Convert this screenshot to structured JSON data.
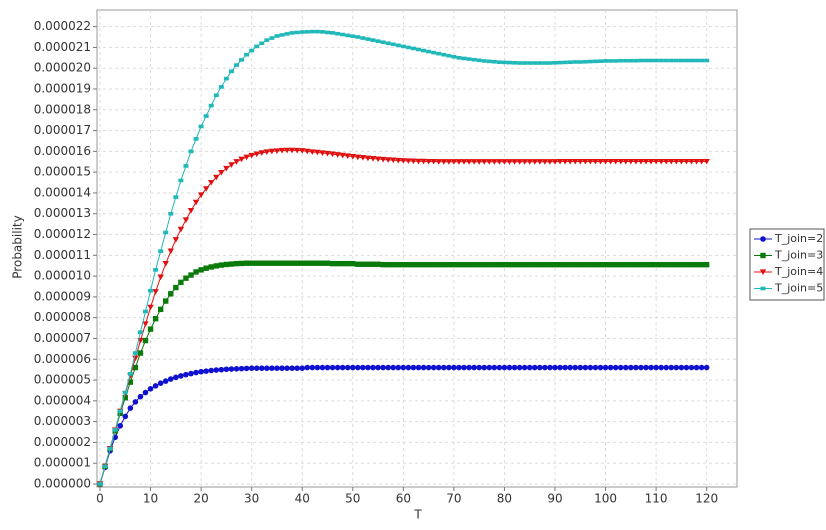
{
  "chart_data": {
    "type": "line",
    "xlabel": "T",
    "ylabel": "Probability",
    "x": [
      0,
      1,
      2,
      3,
      4,
      5,
      6,
      7,
      8,
      9,
      10,
      11,
      12,
      13,
      14,
      15,
      16,
      17,
      18,
      19,
      20,
      21,
      22,
      23,
      24,
      25,
      26,
      27,
      28,
      29,
      30,
      31,
      32,
      33,
      34,
      35,
      36,
      37,
      38,
      39,
      40,
      41,
      42,
      43,
      44,
      45,
      46,
      47,
      48,
      49,
      50,
      51,
      52,
      53,
      54,
      55,
      56,
      57,
      58,
      59,
      60,
      61,
      62,
      63,
      64,
      65,
      66,
      67,
      68,
      69,
      70,
      71,
      72,
      73,
      74,
      75,
      76,
      77,
      78,
      79,
      80,
      81,
      82,
      83,
      84,
      85,
      86,
      87,
      88,
      89,
      90,
      91,
      92,
      93,
      94,
      95,
      96,
      97,
      98,
      99,
      100,
      101,
      102,
      103,
      104,
      105,
      106,
      107,
      108,
      109,
      110,
      111,
      112,
      113,
      114,
      115,
      116,
      117,
      118,
      119,
      120
    ],
    "series": [
      {
        "name": "T_join=2",
        "color": "#1010d0",
        "marker": "circle",
        "values": [
          0,
          8e-07,
          1.6e-06,
          2.25e-06,
          2.8e-06,
          3.25e-06,
          3.65e-06,
          3.95e-06,
          4.2e-06,
          4.4e-06,
          4.58e-06,
          4.72e-06,
          4.85e-06,
          4.95e-06,
          5.05e-06,
          5.13e-06,
          5.2e-06,
          5.26e-06,
          5.31e-06,
          5.36e-06,
          5.4e-06,
          5.43e-06,
          5.46e-06,
          5.48e-06,
          5.5e-06,
          5.52e-06,
          5.53e-06,
          5.54e-06,
          5.55e-06,
          5.56e-06,
          5.57e-06,
          5.57e-06,
          5.57e-06,
          5.57e-06,
          5.57e-06,
          5.57e-06,
          5.57e-06,
          5.57e-06,
          5.57e-06,
          5.57e-06,
          5.57e-06,
          5.6e-06,
          5.6e-06,
          5.6e-06,
          5.6e-06,
          5.6e-06,
          5.6e-06,
          5.6e-06,
          5.6e-06,
          5.6e-06,
          5.6e-06,
          5.6e-06,
          5.6e-06,
          5.6e-06,
          5.6e-06,
          5.6e-06,
          5.6e-06,
          5.6e-06,
          5.6e-06,
          5.6e-06,
          5.6e-06,
          5.6e-06,
          5.6e-06,
          5.6e-06,
          5.6e-06,
          5.6e-06,
          5.6e-06,
          5.6e-06,
          5.6e-06,
          5.6e-06,
          5.6e-06,
          5.6e-06,
          5.6e-06,
          5.6e-06,
          5.6e-06,
          5.6e-06,
          5.6e-06,
          5.6e-06,
          5.6e-06,
          5.6e-06,
          5.6e-06,
          5.6e-06,
          5.6e-06,
          5.6e-06,
          5.6e-06,
          5.6e-06,
          5.6e-06,
          5.6e-06,
          5.6e-06,
          5.6e-06,
          5.6e-06,
          5.6e-06,
          5.6e-06,
          5.6e-06,
          5.6e-06,
          5.6e-06,
          5.6e-06,
          5.6e-06,
          5.6e-06,
          5.6e-06,
          5.6e-06,
          5.6e-06,
          5.6e-06,
          5.6e-06,
          5.6e-06,
          5.6e-06,
          5.6e-06,
          5.6e-06,
          5.6e-06,
          5.6e-06,
          5.6e-06,
          5.6e-06,
          5.6e-06,
          5.6e-06,
          5.6e-06,
          5.6e-06,
          5.6e-06,
          5.6e-06,
          5.6e-06,
          5.6e-06,
          5.6e-06
        ]
      },
      {
        "name": "T_join=3",
        "color": "#0a7a0a",
        "marker": "square",
        "values": [
          0,
          8.5e-07,
          1.7e-06,
          2.55e-06,
          3.4e-06,
          4.15e-06,
          4.9e-06,
          5.6e-06,
          6.3e-06,
          6.9e-06,
          7.45e-06,
          7.95e-06,
          8.4e-06,
          8.8e-06,
          9.15e-06,
          9.45e-06,
          9.7e-06,
          9.9e-06,
          1.005e-05,
          1.02e-05,
          1.03e-05,
          1.038e-05,
          1.044e-05,
          1.049e-05,
          1.053e-05,
          1.056e-05,
          1.058e-05,
          1.06e-05,
          1.061e-05,
          1.062e-05,
          1.062e-05,
          1.062e-05,
          1.062e-05,
          1.062e-05,
          1.062e-05,
          1.062e-05,
          1.062e-05,
          1.062e-05,
          1.062e-05,
          1.062e-05,
          1.062e-05,
          1.062e-05,
          1.062e-05,
          1.062e-05,
          1.062e-05,
          1.062e-05,
          1.06e-05,
          1.06e-05,
          1.06e-05,
          1.06e-05,
          1.06e-05,
          1.057e-05,
          1.057e-05,
          1.057e-05,
          1.057e-05,
          1.057e-05,
          1.055e-05,
          1.055e-05,
          1.055e-05,
          1.055e-05,
          1.055e-05,
          1.055e-05,
          1.055e-05,
          1.055e-05,
          1.055e-05,
          1.055e-05,
          1.055e-05,
          1.055e-05,
          1.055e-05,
          1.055e-05,
          1.055e-05,
          1.055e-05,
          1.055e-05,
          1.055e-05,
          1.055e-05,
          1.055e-05,
          1.055e-05,
          1.055e-05,
          1.055e-05,
          1.055e-05,
          1.055e-05,
          1.055e-05,
          1.055e-05,
          1.055e-05,
          1.055e-05,
          1.055e-05,
          1.055e-05,
          1.055e-05,
          1.055e-05,
          1.055e-05,
          1.055e-05,
          1.055e-05,
          1.055e-05,
          1.055e-05,
          1.055e-05,
          1.055e-05,
          1.055e-05,
          1.055e-05,
          1.055e-05,
          1.055e-05,
          1.055e-05,
          1.055e-05,
          1.055e-05,
          1.055e-05,
          1.055e-05,
          1.055e-05,
          1.055e-05,
          1.055e-05,
          1.055e-05,
          1.055e-05,
          1.055e-05,
          1.055e-05,
          1.055e-05,
          1.055e-05,
          1.055e-05,
          1.055e-05,
          1.055e-05,
          1.055e-05,
          1.055e-05,
          1.055e-05,
          1.055e-05
        ]
      },
      {
        "name": "T_join=4",
        "color": "#e01010",
        "marker": "triangle-down",
        "values": [
          0,
          8.5e-07,
          1.7e-06,
          2.6e-06,
          3.5e-06,
          4.35e-06,
          5.2e-06,
          6.05e-06,
          6.9e-06,
          7.7e-06,
          8.5e-06,
          9.25e-06,
          9.95e-06,
          1.06e-05,
          1.12e-05,
          1.175e-05,
          1.225e-05,
          1.27e-05,
          1.315e-05,
          1.355e-05,
          1.39e-05,
          1.42e-05,
          1.45e-05,
          1.475e-05,
          1.498e-05,
          1.518e-05,
          1.535e-05,
          1.55e-05,
          1.562e-05,
          1.572e-05,
          1.58e-05,
          1.587e-05,
          1.593e-05,
          1.597e-05,
          1.6e-05,
          1.602e-05,
          1.604e-05,
          1.605e-05,
          1.605e-05,
          1.604e-05,
          1.603e-05,
          1.6e-05,
          1.597e-05,
          1.595e-05,
          1.592e-05,
          1.59e-05,
          1.587e-05,
          1.584e-05,
          1.581e-05,
          1.578e-05,
          1.575e-05,
          1.572e-05,
          1.57e-05,
          1.567e-05,
          1.565e-05,
          1.563e-05,
          1.561e-05,
          1.559e-05,
          1.558e-05,
          1.556e-05,
          1.555e-05,
          1.554e-05,
          1.553e-05,
          1.552e-05,
          1.552e-05,
          1.551e-05,
          1.551e-05,
          1.55e-05,
          1.55e-05,
          1.55e-05,
          1.55e-05,
          1.55e-05,
          1.55e-05,
          1.55e-05,
          1.55e-05,
          1.55e-05,
          1.55e-05,
          1.55e-05,
          1.55e-05,
          1.55e-05,
          1.55e-05,
          1.55e-05,
          1.55e-05,
          1.55e-05,
          1.55e-05,
          1.55e-05,
          1.55e-05,
          1.55e-05,
          1.55e-05,
          1.55e-05,
          1.55e-05,
          1.551e-05,
          1.551e-05,
          1.551e-05,
          1.551e-05,
          1.551e-05,
          1.551e-05,
          1.551e-05,
          1.551e-05,
          1.551e-05,
          1.551e-05,
          1.551e-05,
          1.551e-05,
          1.551e-05,
          1.551e-05,
          1.551e-05,
          1.551e-05,
          1.551e-05,
          1.551e-05,
          1.551e-05,
          1.551e-05,
          1.551e-05,
          1.551e-05,
          1.551e-05,
          1.551e-05,
          1.551e-05,
          1.551e-05,
          1.551e-05,
          1.551e-05,
          1.551e-05,
          1.551e-05
        ]
      },
      {
        "name": "T_join=5",
        "color": "#20b8b8",
        "marker": "dash",
        "values": [
          0,
          8.5e-07,
          1.7e-06,
          2.6e-06,
          3.5e-06,
          4.4e-06,
          5.3e-06,
          6.3e-06,
          7.3e-06,
          8.3e-06,
          9.3e-06,
          1.03e-05,
          1.12e-05,
          1.21e-05,
          1.3e-05,
          1.38e-05,
          1.46e-05,
          1.53e-05,
          1.6e-05,
          1.66e-05,
          1.72e-05,
          1.77e-05,
          1.82e-05,
          1.87e-05,
          1.91e-05,
          1.95e-05,
          1.985e-05,
          2.015e-05,
          2.04e-05,
          2.065e-05,
          2.085e-05,
          2.105e-05,
          2.12e-05,
          2.135e-05,
          2.145e-05,
          2.155e-05,
          2.16e-05,
          2.165e-05,
          2.17e-05,
          2.172e-05,
          2.174e-05,
          2.175e-05,
          2.176e-05,
          2.176e-05,
          2.175e-05,
          2.172e-05,
          2.17e-05,
          2.166e-05,
          2.162e-05,
          2.158e-05,
          2.154e-05,
          2.15e-05,
          2.145e-05,
          2.14e-05,
          2.135e-05,
          2.13e-05,
          2.125e-05,
          2.12e-05,
          2.115e-05,
          2.11e-05,
          2.105e-05,
          2.1e-05,
          2.095e-05,
          2.09e-05,
          2.085e-05,
          2.08e-05,
          2.075e-05,
          2.07e-05,
          2.065e-05,
          2.06e-05,
          2.055e-05,
          2.05e-05,
          2.047e-05,
          2.044e-05,
          2.041e-05,
          2.038e-05,
          2.035e-05,
          2.033e-05,
          2.031e-05,
          2.029e-05,
          2.028e-05,
          2.027e-05,
          2.026e-05,
          2.025e-05,
          2.025e-05,
          2.025e-05,
          2.025e-05,
          2.025e-05,
          2.025e-05,
          2.025e-05,
          2.026e-05,
          2.027e-05,
          2.028e-05,
          2.029e-05,
          2.03e-05,
          2.03e-05,
          2.031e-05,
          2.032e-05,
          2.033e-05,
          2.034e-05,
          2.035e-05,
          2.035e-05,
          2.035e-05,
          2.036e-05,
          2.036e-05,
          2.036e-05,
          2.036e-05,
          2.037e-05,
          2.037e-05,
          2.037e-05,
          2.037e-05,
          2.037e-05,
          2.037e-05,
          2.037e-05,
          2.037e-05,
          2.037e-05,
          2.037e-05,
          2.037e-05,
          2.037e-05,
          2.037e-05,
          2.037e-05
        ]
      }
    ],
    "xlim": [
      0,
      126
    ],
    "xticks": [
      0,
      10,
      20,
      30,
      40,
      50,
      60,
      70,
      80,
      90,
      100,
      110,
      120
    ],
    "ylim": [
      0,
      2.28e-05
    ],
    "yticks": [
      {
        "value": 0,
        "label": "0.000000"
      },
      {
        "value": 1e-06,
        "label": "0.000001"
      },
      {
        "value": 2e-06,
        "label": "0.000002"
      },
      {
        "value": 3e-06,
        "label": "0.000003"
      },
      {
        "value": 4e-06,
        "label": "0.000004"
      },
      {
        "value": 5e-06,
        "label": "0.000005"
      },
      {
        "value": 6e-06,
        "label": "0.000006"
      },
      {
        "value": 7e-06,
        "label": "0.000007"
      },
      {
        "value": 8e-06,
        "label": "0.000008"
      },
      {
        "value": 9e-06,
        "label": "0.000009"
      },
      {
        "value": 1e-05,
        "label": "0.000010"
      },
      {
        "value": 1.1e-05,
        "label": "0.000011"
      },
      {
        "value": 1.2e-05,
        "label": "0.000012"
      },
      {
        "value": 1.3e-05,
        "label": "0.000013"
      },
      {
        "value": 1.4e-05,
        "label": "0.000014"
      },
      {
        "value": 1.5e-05,
        "label": "0.000015"
      },
      {
        "value": 1.6e-05,
        "label": "0.000016"
      },
      {
        "value": 1.7e-05,
        "label": "0.000017"
      },
      {
        "value": 1.8e-05,
        "label": "0.000018"
      },
      {
        "value": 1.9e-05,
        "label": "0.000019"
      },
      {
        "value": 2e-05,
        "label": "0.000020"
      },
      {
        "value": 2.1e-05,
        "label": "0.000021"
      },
      {
        "value": 2.2e-05,
        "label": "0.000022"
      }
    ],
    "grid": true,
    "legend": "right"
  }
}
